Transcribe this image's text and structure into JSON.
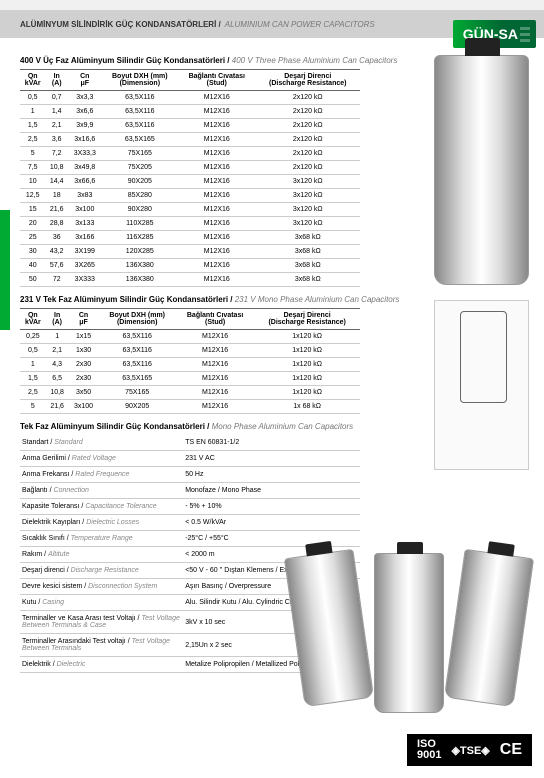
{
  "header": {
    "title": "ALÜMİNYUM SİLİNDİRİK GÜÇ KONDANSATÖRLERİ /",
    "subtitle": "ALUMINIUM CAN POWER CAPACITORS",
    "logo": "GÜN-SA"
  },
  "columns": [
    {
      "l1": "Qn",
      "l2": "kVAr"
    },
    {
      "l1": "In",
      "l2": "(A)"
    },
    {
      "l1": "Cn",
      "l2": "μF"
    },
    {
      "l1": "Boyut DXH (mm)",
      "l2": "(Dimension)"
    },
    {
      "l1": "Bağlantı Cıvatası",
      "l2": "(Stud)"
    },
    {
      "l1": "Deşarj Direnci",
      "l2": "(Discharge Resistance)"
    }
  ],
  "table1": {
    "title": "400 V Üç Faz Alüminyum Silindir Güç Kondansatörleri /",
    "subtitle": "400 V Three Phase Aluminium Can Capacitors",
    "rows": [
      [
        "0,5",
        "0,7",
        "3x3,3",
        "63,5X116",
        "M12X16",
        "2x120 kΩ"
      ],
      [
        "1",
        "1,4",
        "3x6,6",
        "63,5X116",
        "M12X16",
        "2x120 kΩ"
      ],
      [
        "1,5",
        "2,1",
        "3x9,9",
        "63,5X116",
        "M12X16",
        "2x120 kΩ"
      ],
      [
        "2,5",
        "3,6",
        "3x16,6",
        "63,5X165",
        "M12X16",
        "2x120 kΩ"
      ],
      [
        "5",
        "7,2",
        "3X33,3",
        "75X165",
        "M12X16",
        "2x120 kΩ"
      ],
      [
        "7,5",
        "10,8",
        "3x49,8",
        "75X205",
        "M12X16",
        "2x120 kΩ"
      ],
      [
        "10",
        "14,4",
        "3x66,6",
        "90X205",
        "M12X16",
        "3x120 kΩ"
      ],
      [
        "12,5",
        "18",
        "3x83",
        "85X280",
        "M12X16",
        "3x120 kΩ"
      ],
      [
        "15",
        "21,6",
        "3x100",
        "90X280",
        "M12X16",
        "3x120 kΩ"
      ],
      [
        "20",
        "28,8",
        "3x133",
        "110X285",
        "M12X16",
        "3x120 kΩ"
      ],
      [
        "25",
        "36",
        "3x166",
        "116X285",
        "M12X16",
        "3x68 kΩ"
      ],
      [
        "30",
        "43,2",
        "3X199",
        "120X285",
        "M12X16",
        "3x68 kΩ"
      ],
      [
        "40",
        "57,6",
        "3X265",
        "136X380",
        "M12X16",
        "3x68 kΩ"
      ],
      [
        "50",
        "72",
        "3X333",
        "136X380",
        "M12X16",
        "3x68 kΩ"
      ]
    ]
  },
  "table2": {
    "title": "231 V Tek Faz Alüminyum Silindir Güç Kondansatörleri /",
    "subtitle": "231 V Mono Phase Aluminium Can Capacitors",
    "rows": [
      [
        "0,25",
        "1",
        "1x15",
        "63,5X116",
        "M12X16",
        "1x120 kΩ"
      ],
      [
        "0,5",
        "2,1",
        "1x30",
        "63,5X116",
        "M12X16",
        "1x120 kΩ"
      ],
      [
        "1",
        "4,3",
        "2x30",
        "63,5X116",
        "M12X16",
        "1x120 kΩ"
      ],
      [
        "1,5",
        "6,5",
        "2x30",
        "63,5X165",
        "M12X16",
        "1x120 kΩ"
      ],
      [
        "2,5",
        "10,8",
        "3x50",
        "75X165",
        "M12X16",
        "1x120 kΩ"
      ],
      [
        "5",
        "21,6",
        "3x100",
        "90X205",
        "M12X16",
        "1x 68 kΩ"
      ]
    ]
  },
  "specs": {
    "title": "Tek Faz Alüminyum Silindir Güç Kondansatörleri /",
    "subtitle": "Mono Phase Aluminium Can Capacitors",
    "rows": [
      [
        "Standart",
        "Standard",
        "TS EN 60831-1/2"
      ],
      [
        "Anma Gerilimi",
        "Rated Voltage",
        "231 V AC"
      ],
      [
        "Anma Frekansı",
        "Rated Frequence",
        "50 Hz"
      ],
      [
        "Bağlantı",
        "Connection",
        "Monofaze / Mono Phase"
      ],
      [
        "Kapasite Toleransı",
        "Capacitance Tolerance",
        "- 5% + 10%"
      ],
      [
        "Dielektrik Kayıpları",
        "Dielectric Losses",
        "< 0.5 W/kVAr"
      ],
      [
        "Sıcaklık Sınıfı",
        "Temperature Range",
        "-25°C / +55°C"
      ],
      [
        "Rakım",
        "Altitute",
        "< 2000 m"
      ],
      [
        "Deşarj direnci",
        "Discharge Resistance",
        "<50 V - 60 '' Dıştan Klemens / External"
      ],
      [
        "Devre kesici sistem",
        "Disconnection System",
        "Aşırı Basınç / Overpressure"
      ],
      [
        "Kutu",
        "Casing",
        "Alu. Silindir Kutu / Alu. Cylindric Can"
      ],
      [
        "Terminaller ve Kasa Arası test Voltajı",
        "Test Voltage Between Terminals & Case",
        "3kV x 10 sec"
      ],
      [
        "Terminaller Arasındaki Test voltajı",
        "Test Voltage Between Terminals",
        "2,15Un x 2 sec"
      ],
      [
        "Dielektrik",
        "Dielectric",
        "Metalize Polipropilen / Metallized Polypropilene"
      ]
    ]
  },
  "footer": {
    "iso1": "ISO",
    "iso2": "9001"
  }
}
